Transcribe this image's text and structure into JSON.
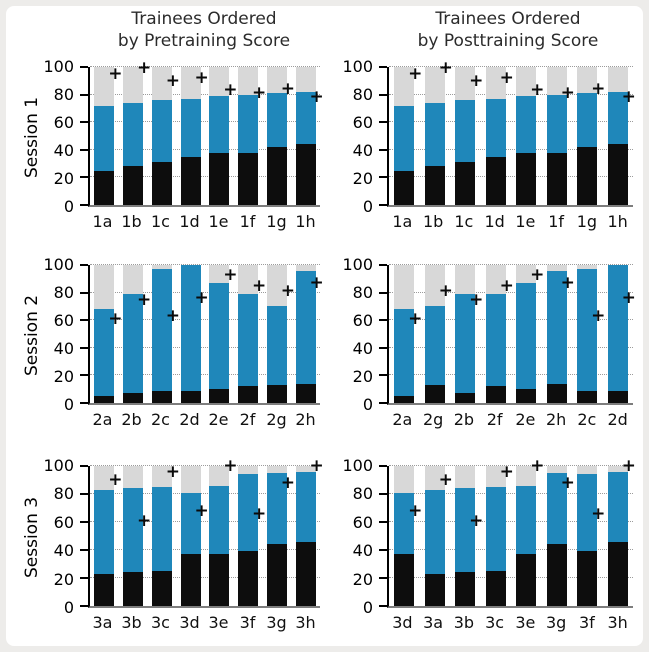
{
  "page": {
    "background": "#edecea",
    "figure_background": "#ffffff"
  },
  "titles": {
    "left": {
      "lines": [
        "Trainees Ordered",
        "by Pretraining Score"
      ]
    },
    "right": {
      "lines": [
        "Trainees Ordered",
        "by Posttraining Score"
      ]
    }
  },
  "chart_data": {
    "type": "bar",
    "stacked": true,
    "ylim": [
      0,
      100
    ],
    "yticks": [
      0,
      20,
      40,
      60,
      80,
      100
    ],
    "grid": "horizontal dotted",
    "marker": {
      "symbol": "+",
      "color": "#0a0a0a"
    },
    "colors": {
      "black_segment": "#0d0d0d",
      "blue_segment": "#1f87ba",
      "gray_segment": "#d8d8d8"
    },
    "bar_structure": "black segment from 0 to black_top; blue segment from black_top to blue_top; gray segment from blue_top to 100; plus marker plotted at plus value",
    "row_labels": [
      "Session 1",
      "Session 2",
      "Session 3"
    ],
    "subplots": [
      {
        "name": "session1-by-pretraining",
        "session": "Session 1",
        "categories": [
          "1a",
          "1b",
          "1c",
          "1d",
          "1e",
          "1f",
          "1g",
          "1h"
        ],
        "black_top": [
          25,
          28,
          31,
          35,
          38,
          38,
          42,
          44
        ],
        "blue_top": [
          72,
          74,
          76,
          77,
          79,
          80,
          81,
          82
        ],
        "plus": [
          95,
          99,
          90,
          92,
          83,
          81,
          84,
          78
        ]
      },
      {
        "name": "session1-by-posttraining",
        "session": "Session 1",
        "categories": [
          "1a",
          "1b",
          "1c",
          "1d",
          "1e",
          "1f",
          "1g",
          "1h"
        ],
        "black_top": [
          25,
          28,
          31,
          35,
          38,
          38,
          42,
          44
        ],
        "blue_top": [
          72,
          74,
          76,
          77,
          79,
          80,
          81,
          82
        ],
        "plus": [
          95,
          99,
          90,
          92,
          83,
          81,
          84,
          78
        ]
      },
      {
        "name": "session2-by-pretraining",
        "session": "Session 2",
        "categories": [
          "2a",
          "2b",
          "2c",
          "2d",
          "2e",
          "2f",
          "2g",
          "2h"
        ],
        "black_top": [
          5,
          7,
          9,
          9,
          10,
          12,
          13,
          14
        ],
        "blue_top": [
          68,
          79,
          97,
          100,
          87,
          79,
          70,
          96
        ],
        "plus": [
          61,
          75,
          63,
          76,
          93,
          85,
          81,
          87
        ]
      },
      {
        "name": "session2-by-posttraining",
        "session": "Session 2",
        "categories": [
          "2a",
          "2g",
          "2b",
          "2f",
          "2e",
          "2h",
          "2c",
          "2d"
        ],
        "black_top": [
          5,
          13,
          7,
          12,
          10,
          14,
          9,
          9
        ],
        "blue_top": [
          68,
          70,
          79,
          79,
          87,
          96,
          97,
          100
        ],
        "plus": [
          61,
          81,
          75,
          85,
          93,
          87,
          63,
          76
        ]
      },
      {
        "name": "session3-by-pretraining",
        "session": "Session 3",
        "categories": [
          "3a",
          "3b",
          "3c",
          "3d",
          "3e",
          "3f",
          "3g",
          "3h"
        ],
        "black_top": [
          23,
          24,
          25,
          37,
          37,
          39,
          44,
          46
        ],
        "blue_top": [
          83,
          84,
          85,
          81,
          86,
          94,
          95,
          96
        ],
        "plus": [
          90,
          61,
          96,
          68,
          100,
          66,
          88,
          100
        ]
      },
      {
        "name": "session3-by-posttraining",
        "session": "Session 3",
        "categories": [
          "3d",
          "3a",
          "3b",
          "3c",
          "3e",
          "3g",
          "3f",
          "3h"
        ],
        "black_top": [
          37,
          23,
          24,
          25,
          37,
          44,
          39,
          46
        ],
        "blue_top": [
          81,
          83,
          84,
          85,
          86,
          95,
          94,
          96
        ],
        "plus": [
          68,
          90,
          61,
          96,
          100,
          88,
          66,
          100
        ]
      }
    ]
  }
}
